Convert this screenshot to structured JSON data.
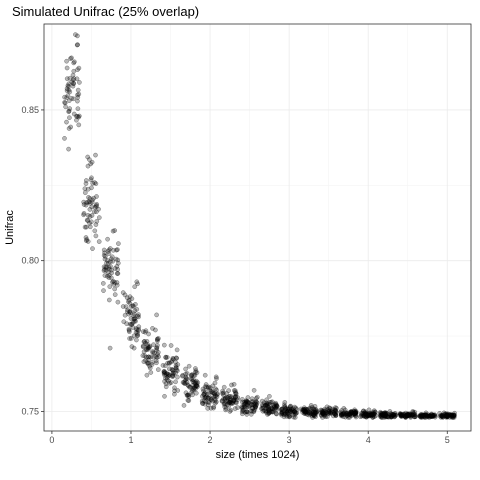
{
  "chart_data": {
    "type": "scatter",
    "title": "Simulated Unifrac (25% overlap)",
    "xlabel": "size (times 1024)",
    "ylabel": "Unifrac",
    "xlim": [
      -0.1,
      5.3
    ],
    "ylim": [
      0.7435,
      0.8785
    ],
    "x_ticks": [
      0,
      1,
      2,
      3,
      4,
      5
    ],
    "y_ticks": [
      0.75,
      0.8,
      0.85
    ],
    "x_tick_labels": [
      "0",
      "1",
      "2",
      "3",
      "4",
      "5"
    ],
    "y_tick_labels": [
      "0.75",
      "0.80",
      "0.85"
    ],
    "grid": true,
    "theme": "bw",
    "point_color": "#000000",
    "point_alpha": 0.3,
    "points_per_size": 60,
    "series": [
      {
        "x": [
          0.25,
          0.5,
          0.75,
          1.0,
          1.25,
          1.5,
          1.75,
          2.0,
          2.25,
          2.5,
          2.75,
          3.0,
          3.25,
          3.5,
          3.75,
          4.0,
          4.25,
          4.5,
          4.75,
          5.0
        ],
        "y_mean": [
          0.856,
          0.818,
          0.797,
          0.781,
          0.77,
          0.763,
          0.759,
          0.756,
          0.754,
          0.752,
          0.751,
          0.75,
          0.7498,
          0.7495,
          0.7492,
          0.749,
          0.7488,
          0.7487,
          0.7486,
          0.7485
        ],
        "y_spread": [
          0.011,
          0.009,
          0.008,
          0.007,
          0.005,
          0.0045,
          0.0038,
          0.003,
          0.0025,
          0.002,
          0.0018,
          0.0015,
          0.0012,
          0.001,
          0.0009,
          0.0008,
          0.0007,
          0.0006,
          0.0006,
          0.0005
        ],
        "y_max": [
          0.875,
          0.835,
          0.81,
          0.793,
          0.782,
          0.772,
          0.765,
          0.762,
          0.759,
          0.757,
          0.755,
          0.753,
          0.752,
          0.7515,
          0.751,
          0.7505,
          0.75,
          0.75,
          0.7495,
          0.7495
        ],
        "y_min": [
          0.837,
          0.804,
          0.771,
          0.771,
          0.762,
          0.755,
          0.752,
          0.751,
          0.75,
          0.749,
          0.749,
          0.748,
          0.748,
          0.748,
          0.748,
          0.748,
          0.748,
          0.748,
          0.748,
          0.748
        ]
      }
    ]
  }
}
